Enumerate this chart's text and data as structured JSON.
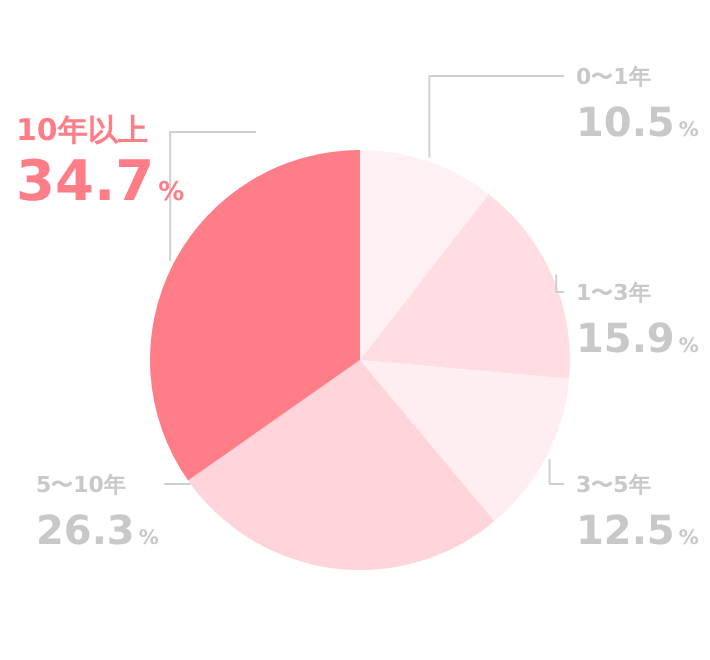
{
  "chart_data": {
    "type": "pie",
    "categories": [
      "0〜1年",
      "1〜3年",
      "3〜5年",
      "5〜10年",
      "10年以上"
    ],
    "values": [
      10.5,
      15.9,
      12.5,
      26.3,
      34.7
    ],
    "value_labels": [
      "10.5%",
      "15.9%",
      "12.5%",
      "26.3%",
      "34.7%"
    ],
    "colors": [
      "#fff1f3",
      "#ffdde2",
      "#ffeef1",
      "#ffd5db",
      "#ff7d87"
    ]
  }
}
